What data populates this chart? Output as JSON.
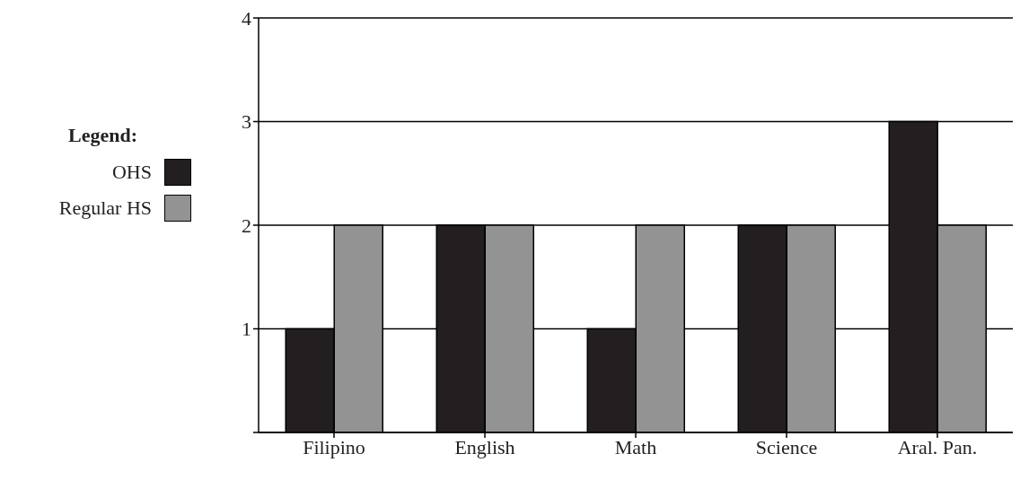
{
  "chart_data": {
    "type": "bar",
    "categories": [
      "Filipino",
      "English",
      "Math",
      "Science",
      "Aral. Pan."
    ],
    "series": [
      {
        "name": "OHS",
        "color": "#231f20",
        "values": [
          1,
          2,
          1,
          2,
          3
        ]
      },
      {
        "name": "Regular HS",
        "color": "#939393",
        "values": [
          2,
          2,
          2,
          2,
          2
        ]
      }
    ],
    "ylim": [
      0,
      4
    ],
    "yticks": [
      {
        "value": 0,
        "label": null
      },
      1,
      2,
      3,
      4
    ],
    "grid": "y",
    "legend": "left",
    "legend_title": "Legend:"
  }
}
